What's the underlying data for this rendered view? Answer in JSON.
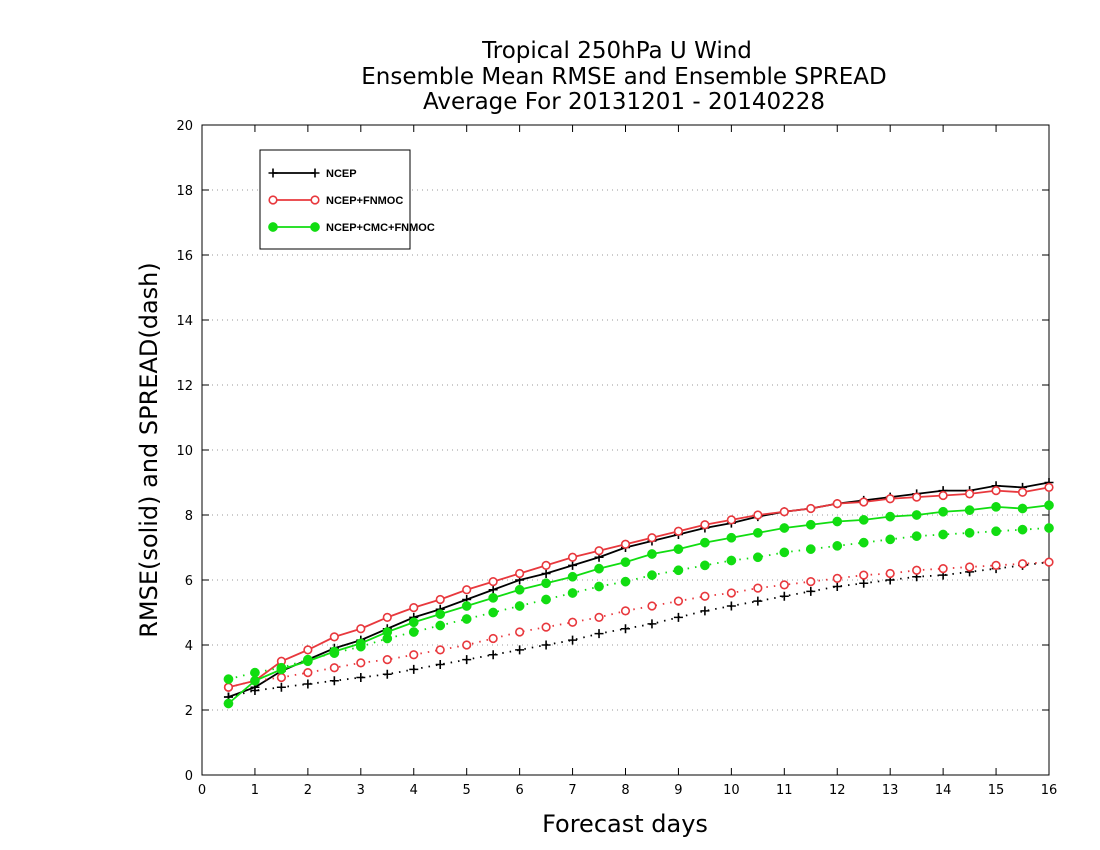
{
  "chart_data": {
    "type": "line",
    "title": [
      "Tropical 250hPa U Wind",
      "Ensemble Mean RMSE and Ensemble SPREAD",
      "Average For 20131201 - 20140228"
    ],
    "xlabel": "Forecast days",
    "ylabel": "RMSE(solid) and SPREAD(dash)",
    "xlim": [
      0,
      16
    ],
    "ylim": [
      0,
      20
    ],
    "xticks": [
      "0",
      "1",
      "2",
      "3",
      "4",
      "5",
      "6",
      "7",
      "8",
      "9",
      "10",
      "11",
      "12",
      "13",
      "14",
      "15",
      "16"
    ],
    "yticks": [
      "0",
      "2",
      "4",
      "6",
      "8",
      "10",
      "12",
      "14",
      "16",
      "18",
      "20"
    ],
    "grid": "horizontal dotted",
    "legend_position": "top-left",
    "x": [
      0.5,
      1,
      1.5,
      2,
      2.5,
      3,
      3.5,
      4,
      4.5,
      5,
      5.5,
      6,
      6.5,
      7,
      7.5,
      8,
      8.5,
      9,
      9.5,
      10,
      10.5,
      11,
      11.5,
      12,
      12.5,
      13,
      13.5,
      14,
      14.5,
      15,
      15.5,
      16
    ],
    "series": [
      {
        "name": "NCEP",
        "color": "#000000",
        "marker": "plus",
        "rmse": [
          2.4,
          2.7,
          3.2,
          3.55,
          3.9,
          4.15,
          4.5,
          4.85,
          5.1,
          5.4,
          5.7,
          6.0,
          6.2,
          6.45,
          6.7,
          7.0,
          7.2,
          7.4,
          7.6,
          7.75,
          7.95,
          8.1,
          8.2,
          8.35,
          8.45,
          8.55,
          8.65,
          8.75,
          8.75,
          8.9,
          8.85,
          9.0
        ],
        "spread": [
          2.4,
          2.6,
          2.7,
          2.8,
          2.9,
          3.0,
          3.1,
          3.25,
          3.4,
          3.55,
          3.7,
          3.85,
          4.0,
          4.15,
          4.35,
          4.5,
          4.65,
          4.85,
          5.05,
          5.2,
          5.35,
          5.5,
          5.65,
          5.8,
          5.9,
          6.0,
          6.1,
          6.15,
          6.25,
          6.35,
          6.45,
          6.55
        ]
      },
      {
        "name": "NCEP+FNMOC",
        "color": "#e8383d",
        "marker": "open-circle",
        "rmse": [
          2.7,
          2.9,
          3.5,
          3.85,
          4.25,
          4.5,
          4.85,
          5.15,
          5.4,
          5.7,
          5.95,
          6.2,
          6.45,
          6.7,
          6.9,
          7.1,
          7.3,
          7.5,
          7.7,
          7.85,
          8.0,
          8.1,
          8.2,
          8.35,
          8.4,
          8.5,
          8.55,
          8.6,
          8.65,
          8.75,
          8.7,
          8.85
        ],
        "spread": [
          2.7,
          2.9,
          3.0,
          3.15,
          3.3,
          3.45,
          3.55,
          3.7,
          3.85,
          4.0,
          4.2,
          4.4,
          4.55,
          4.7,
          4.85,
          5.05,
          5.2,
          5.35,
          5.5,
          5.6,
          5.75,
          5.85,
          5.95,
          6.05,
          6.15,
          6.2,
          6.3,
          6.35,
          6.4,
          6.45,
          6.5,
          6.55
        ]
      },
      {
        "name": "NCEP+CMC+FNMOC",
        "color": "#11dd11",
        "marker": "filled-circle",
        "rmse": [
          2.2,
          2.9,
          3.25,
          3.5,
          3.8,
          4.05,
          4.4,
          4.7,
          4.95,
          5.2,
          5.45,
          5.7,
          5.9,
          6.1,
          6.35,
          6.55,
          6.8,
          6.95,
          7.15,
          7.3,
          7.45,
          7.6,
          7.7,
          7.8,
          7.85,
          7.95,
          8.0,
          8.1,
          8.15,
          8.25,
          8.2,
          8.3
        ],
        "spread": [
          2.95,
          3.15,
          3.3,
          3.55,
          3.75,
          3.95,
          4.2,
          4.4,
          4.6,
          4.8,
          5.0,
          5.2,
          5.4,
          5.6,
          5.8,
          5.95,
          6.15,
          6.3,
          6.45,
          6.6,
          6.7,
          6.85,
          6.95,
          7.05,
          7.15,
          7.25,
          7.35,
          7.4,
          7.45,
          7.5,
          7.55,
          7.6
        ]
      }
    ]
  }
}
